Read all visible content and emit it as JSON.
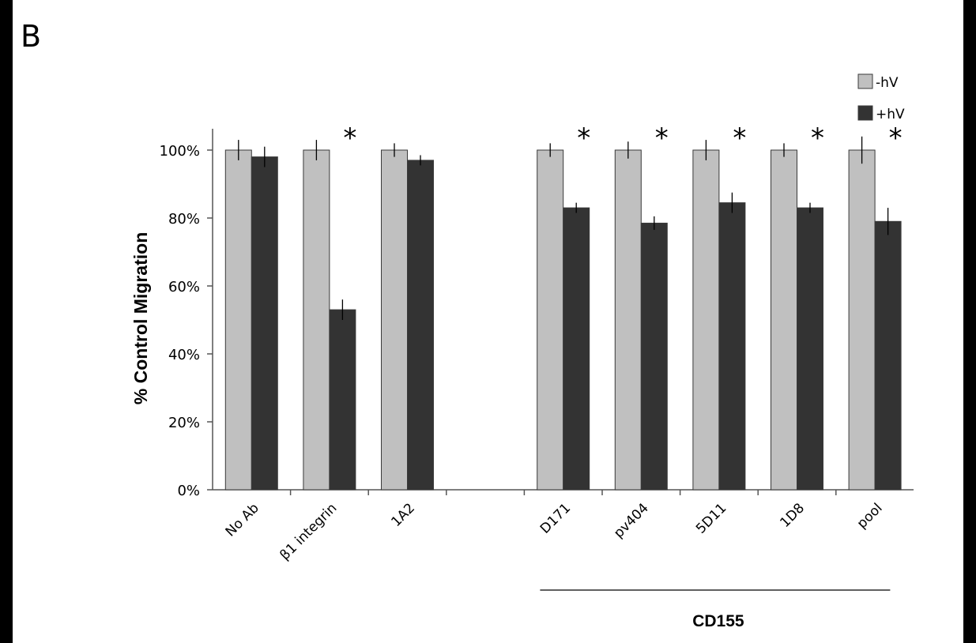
{
  "panel_label": "B",
  "chart_data": {
    "type": "bar",
    "ylabel": "% Control Migration",
    "ylim": [
      0,
      100
    ],
    "yticks": [
      "0%",
      "20%",
      "40%",
      "60%",
      "80%",
      "100%"
    ],
    "grid": false,
    "legend_position": "top-right",
    "categories": [
      "No Ab",
      "β1 integrin",
      "1A2",
      "",
      "D171",
      "pv404",
      "5D11",
      "1D8",
      "pool"
    ],
    "series": [
      {
        "name": "-hV",
        "color": "#c0c0c0",
        "values": [
          100,
          100,
          100,
          null,
          100,
          100,
          100,
          100,
          100
        ],
        "errors": [
          3,
          3,
          2,
          null,
          2,
          2.5,
          3,
          2,
          4
        ]
      },
      {
        "name": "+hV",
        "color": "#333333",
        "values": [
          98,
          53,
          97,
          null,
          83,
          78.5,
          84.5,
          83,
          79
        ],
        "errors": [
          3,
          3,
          1.5,
          null,
          1.5,
          2,
          3,
          1.5,
          4
        ]
      }
    ],
    "significance": [
      "",
      "*",
      "",
      "",
      "*",
      "*",
      "*",
      "*",
      "*"
    ],
    "group_label": "CD155",
    "group_categories": [
      "D171",
      "pv404",
      "5D11",
      "1D8",
      "pool"
    ]
  }
}
